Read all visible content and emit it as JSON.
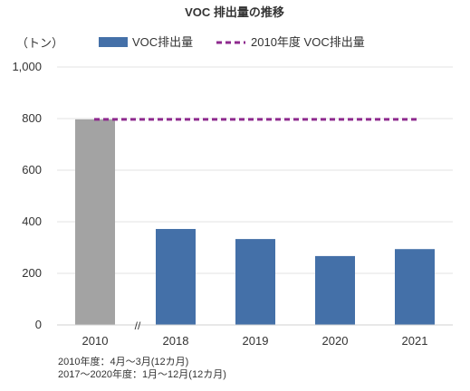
{
  "chart_data": {
    "type": "bar",
    "title": "VOC 排出量の推移",
    "ylabel": "（トン）",
    "categories": [
      "2010",
      "2018",
      "2019",
      "2020",
      "2021"
    ],
    "series": [
      {
        "name": "VOC排出量",
        "values": [
          797,
          372,
          333,
          267,
          294
        ],
        "color": "#4470a8",
        "highlight_color": "#a3a3a3",
        "highlight_category": "2010"
      },
      {
        "name": "2010年度 VOC排出量",
        "type": "line",
        "style": "dashed",
        "value": 797,
        "color": "#8e2a8e"
      }
    ],
    "ylim": [
      0,
      1000
    ],
    "yticks": [
      "0",
      "200",
      "400",
      "600",
      "800",
      "1,000"
    ],
    "grid": true,
    "legend_position": "top",
    "axis_break_marker": "//"
  },
  "notes": [
    "2010年度：4月～3月(12カ月)",
    "2017～2020年度：1月～12月(12カ月)"
  ]
}
